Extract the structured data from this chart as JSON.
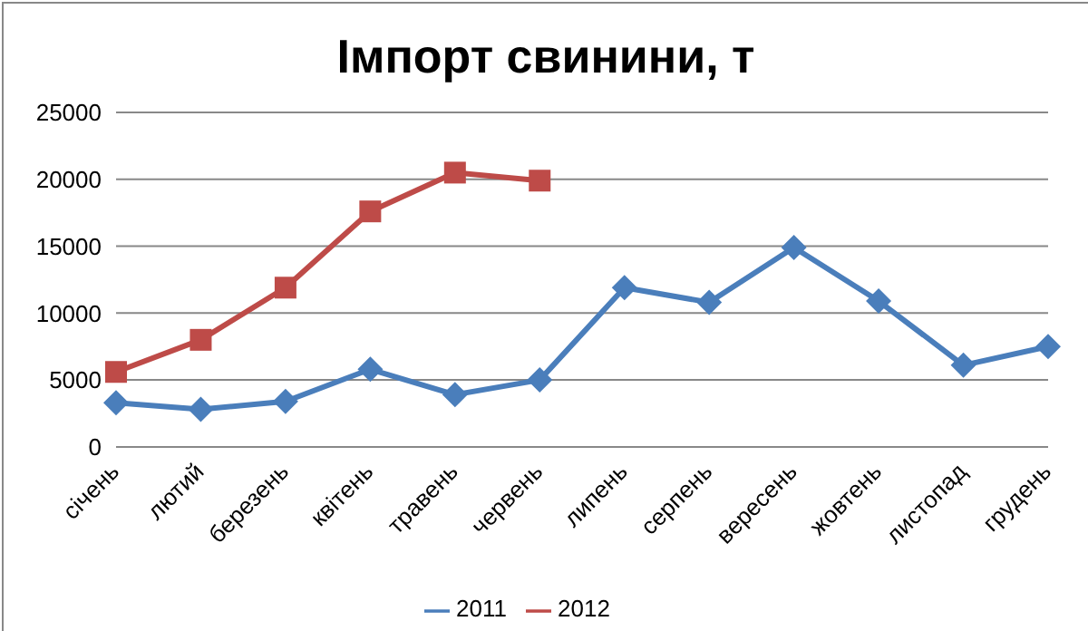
{
  "chart_data": {
    "type": "line",
    "title": "Імпорт свинини, т",
    "categories": [
      "січень",
      "лютий",
      "березень",
      "квітень",
      "травень",
      "червень",
      "липень",
      "серпень",
      "вересень",
      "жовтень",
      "листопад",
      "грудень"
    ],
    "series": [
      {
        "name": "2011",
        "color": "#4a7ebb",
        "marker": "diamond",
        "values": [
          3300,
          2800,
          3400,
          5800,
          3900,
          5000,
          11900,
          10800,
          14900,
          10900,
          6100,
          7500
        ]
      },
      {
        "name": "2012",
        "color": "#be4b48",
        "marker": "square",
        "values": [
          5600,
          8000,
          11900,
          17600,
          20500,
          19900,
          null,
          null,
          null,
          null,
          null,
          null
        ]
      }
    ],
    "ylim": [
      0,
      25000
    ],
    "yticks": [
      0,
      5000,
      10000,
      15000,
      20000,
      25000
    ],
    "grid": "y",
    "legend": "bottom",
    "line_style": "solid"
  }
}
